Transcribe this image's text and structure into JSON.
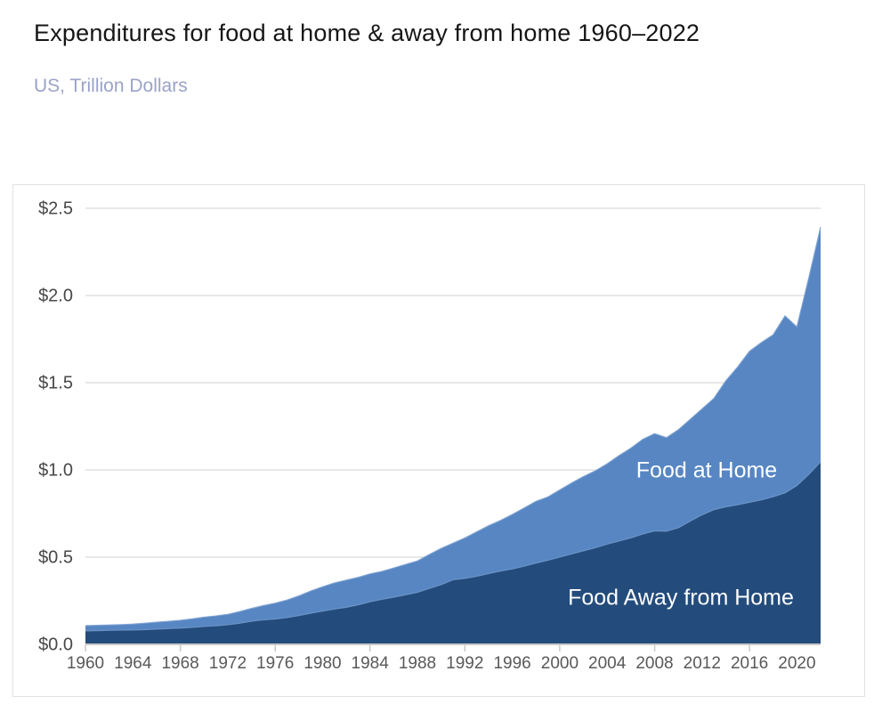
{
  "header": {
    "title": "Expenditures for food at home & away from home 1960–2022",
    "subtitle": "US, Trillion Dollars"
  },
  "chart_data": {
    "type": "area",
    "stacked": true,
    "title": "Expenditures for food at home & away from home 1960–2022",
    "subtitle": "US, Trillion Dollars",
    "unit": "Trillion US Dollars",
    "xlim": [
      1960,
      2022
    ],
    "ylim": [
      0,
      2.5
    ],
    "grid": true,
    "legend_position": "labels-inside-areas",
    "x": [
      1960,
      1961,
      1962,
      1963,
      1964,
      1965,
      1966,
      1967,
      1968,
      1969,
      1970,
      1971,
      1972,
      1973,
      1974,
      1975,
      1976,
      1977,
      1978,
      1979,
      1980,
      1981,
      1982,
      1983,
      1984,
      1985,
      1986,
      1987,
      1988,
      1989,
      1990,
      1991,
      1992,
      1993,
      1994,
      1995,
      1996,
      1997,
      1998,
      1999,
      2000,
      2001,
      2002,
      2003,
      2004,
      2005,
      2006,
      2007,
      2008,
      2009,
      2010,
      2011,
      2012,
      2013,
      2014,
      2015,
      2016,
      2017,
      2018,
      2019,
      2020,
      2021,
      2022
    ],
    "series": [
      {
        "name": "Food Away from Home",
        "position": "bottom-band",
        "color": "#234C7C",
        "values": [
          0.077,
          0.078,
          0.08,
          0.081,
          0.082,
          0.084,
          0.087,
          0.09,
          0.093,
          0.097,
          0.102,
          0.106,
          0.112,
          0.121,
          0.132,
          0.14,
          0.145,
          0.153,
          0.165,
          0.178,
          0.19,
          0.202,
          0.212,
          0.226,
          0.244,
          0.258,
          0.27,
          0.284,
          0.298,
          0.32,
          0.342,
          0.37,
          0.378,
          0.39,
          0.405,
          0.42,
          0.432,
          0.448,
          0.466,
          0.482,
          0.5,
          0.518,
          0.536,
          0.554,
          0.574,
          0.592,
          0.61,
          0.632,
          0.65,
          0.648,
          0.668,
          0.706,
          0.742,
          0.772,
          0.788,
          0.8,
          0.814,
          0.828,
          0.846,
          0.868,
          0.91,
          0.974,
          1.046
        ]
      },
      {
        "name": "Food at Home",
        "position": "top-band",
        "color": "#5786C3",
        "values": [
          0.03,
          0.031,
          0.031,
          0.032,
          0.034,
          0.037,
          0.04,
          0.042,
          0.045,
          0.049,
          0.054,
          0.057,
          0.06,
          0.067,
          0.074,
          0.082,
          0.091,
          0.101,
          0.113,
          0.128,
          0.14,
          0.15,
          0.156,
          0.158,
          0.16,
          0.16,
          0.168,
          0.174,
          0.18,
          0.195,
          0.208,
          0.21,
          0.232,
          0.255,
          0.275,
          0.29,
          0.313,
          0.334,
          0.354,
          0.363,
          0.385,
          0.407,
          0.426,
          0.441,
          0.461,
          0.49,
          0.515,
          0.543,
          0.558,
          0.537,
          0.562,
          0.584,
          0.608,
          0.638,
          0.722,
          0.79,
          0.866,
          0.902,
          0.929,
          1.015,
          0.91,
          1.126,
          1.346
        ]
      }
    ],
    "stack_total_2022": 2.392,
    "y_ticks": [
      {
        "value": 0.0,
        "label": "$0.0"
      },
      {
        "value": 0.5,
        "label": "$0.5"
      },
      {
        "value": 1.0,
        "label": "$1.0"
      },
      {
        "value": 1.5,
        "label": "$1.5"
      },
      {
        "value": 2.0,
        "label": "$2.0"
      },
      {
        "value": 2.5,
        "label": "$2.5"
      }
    ],
    "x_tick_label_years": [
      1960,
      1964,
      1968,
      1972,
      1976,
      1980,
      1984,
      1988,
      1992,
      1996,
      2000,
      2004,
      2008,
      2012,
      2016,
      2020
    ],
    "x_axis_tick_years": [
      1960,
      1968,
      1976,
      1984,
      1992,
      2000,
      2008,
      2016
    ]
  },
  "colors": {
    "grid_line": "#DADADA",
    "axis_line": "#C8C8C8",
    "tick_mark": "#C8C8C8",
    "x_label": "#595959",
    "y_label": "#474747",
    "boundary_stroke": "#7BA0D0",
    "card_border": "#E1E1E4",
    "title": "#161616",
    "subtitle": "#9AA3C7",
    "area_label_text": "#FFFFFF"
  }
}
